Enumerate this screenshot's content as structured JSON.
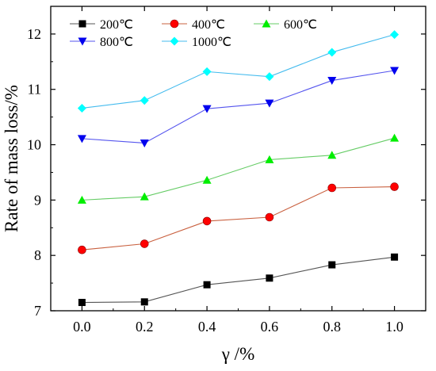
{
  "chart_data": {
    "type": "line",
    "title": "",
    "xlabel": "γ /%",
    "ylabel": "Rate of mass loss/%",
    "xlim": [
      -0.1,
      1.1
    ],
    "ylim": [
      7,
      12.5
    ],
    "xticks": [
      "0.0",
      "0.2",
      "0.4",
      "0.6",
      "0.8",
      "1.0"
    ],
    "yticks": [
      "7",
      "8",
      "9",
      "10",
      "11",
      "12"
    ],
    "grid": false,
    "legend_placement": "top-left",
    "x": [
      0.0,
      0.2,
      0.4,
      0.6,
      0.8,
      1.0
    ],
    "series": [
      {
        "name": "200℃",
        "values": [
          7.15,
          7.16,
          7.47,
          7.59,
          7.83,
          7.97
        ],
        "marker": "square",
        "color": "#000000",
        "line_color": "#555555"
      },
      {
        "name": "400℃",
        "values": [
          8.1,
          8.21,
          8.62,
          8.69,
          9.22,
          9.24
        ],
        "marker": "circle",
        "color": "#ff0000",
        "line_color": "#c9603f"
      },
      {
        "name": "600℃",
        "values": [
          9.0,
          9.06,
          9.36,
          9.73,
          9.81,
          10.12
        ],
        "marker": "triangle-up",
        "color": "#00ee00",
        "line_color": "#66cc66"
      },
      {
        "name": "800℃",
        "values": [
          10.11,
          10.03,
          10.65,
          10.75,
          11.16,
          11.34
        ],
        "marker": "triangle-down",
        "color": "#0000ee",
        "line_color": "#5555ee"
      },
      {
        "name": "1000℃",
        "values": [
          10.66,
          10.8,
          11.32,
          11.23,
          11.67,
          11.99
        ],
        "marker": "diamond",
        "color": "#00ffff",
        "line_color": "#44bbee"
      }
    ]
  }
}
